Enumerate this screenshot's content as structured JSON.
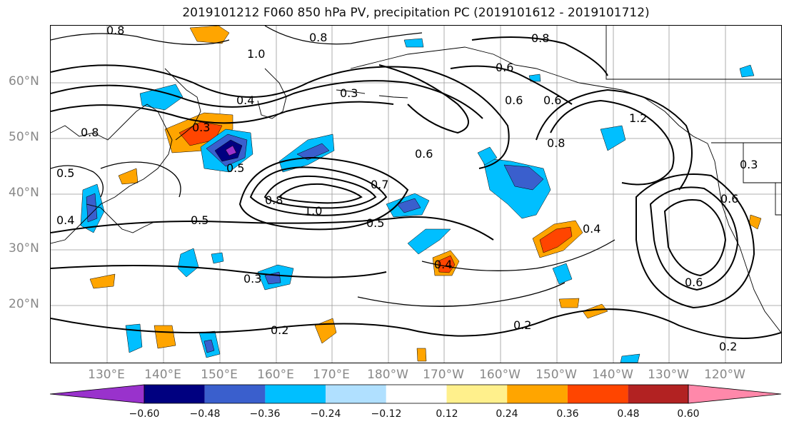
{
  "title": "2019101212 F060 850 hPa PV, precipitation PC (2019101612 - 2019101712)",
  "lat_labels": [
    "60°N",
    "50°N",
    "40°N",
    "30°N",
    "20°N"
  ],
  "lon_labels": [
    "130°E",
    "140°E",
    "150°E",
    "160°E",
    "170°E",
    "180°W",
    "170°W",
    "160°W",
    "150°W",
    "140°W",
    "130°W",
    "120°W"
  ],
  "colorbar": {
    "colors": [
      "#9932cc",
      "#000080",
      "#3a5fcd",
      "#00bfff",
      "#b0e0ff",
      "#ffffff",
      "#fff08c",
      "#ffa500",
      "#ff4500",
      "#b22222",
      "#ff88aa"
    ],
    "tick_labels": [
      "−0.60",
      "−0.48",
      "−0.36",
      "−0.24",
      "−0.12",
      "0.12",
      "0.24",
      "0.36",
      "0.48",
      "0.60"
    ]
  },
  "contour_labels": [
    {
      "text": "0.8"
    },
    {
      "text": "0.8"
    },
    {
      "text": "0.8"
    },
    {
      "text": "1.0"
    },
    {
      "text": "0.8"
    },
    {
      "text": "0.6"
    },
    {
      "text": "0.3"
    },
    {
      "text": "0.4"
    },
    {
      "text": "0.3"
    },
    {
      "text": "0.5"
    },
    {
      "text": "0.6"
    },
    {
      "text": "0.7"
    },
    {
      "text": "0.8"
    },
    {
      "text": "1.0"
    },
    {
      "text": "0.5"
    },
    {
      "text": "0.5"
    },
    {
      "text": "0.5"
    },
    {
      "text": "0.4"
    },
    {
      "text": "0.4"
    },
    {
      "text": "0.3"
    },
    {
      "text": "0.2"
    },
    {
      "text": "0.2"
    },
    {
      "text": "0.2"
    },
    {
      "text": "0.6"
    },
    {
      "text": "0.6"
    },
    {
      "text": "0.8"
    },
    {
      "text": "0.6"
    },
    {
      "text": "1.2"
    },
    {
      "text": "0.4"
    },
    {
      "text": "0.3"
    },
    {
      "text": "0.6"
    }
  ]
}
